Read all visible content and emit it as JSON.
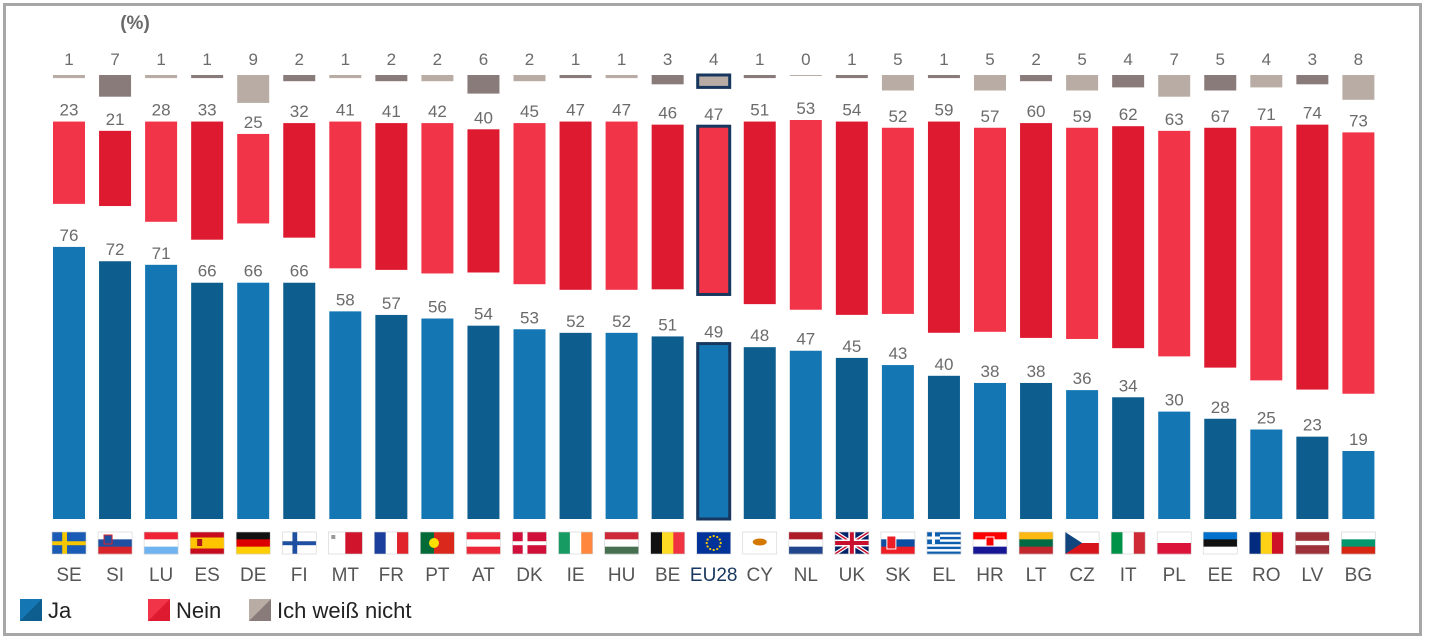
{
  "chart_data": {
    "type": "bar",
    "stacked": true,
    "unit_label": "(%)",
    "categories": [
      "SE",
      "SI",
      "LU",
      "ES",
      "DE",
      "FI",
      "MT",
      "FR",
      "PT",
      "AT",
      "DK",
      "IE",
      "HU",
      "BE",
      "EU28",
      "CY",
      "NL",
      "UK",
      "SK",
      "EL",
      "HR",
      "LT",
      "CZ",
      "IT",
      "PL",
      "EE",
      "RO",
      "LV",
      "BG"
    ],
    "highlight_category": "EU28",
    "series": [
      {
        "name": "Ja",
        "color": "#1070a8",
        "values": [
          76,
          72,
          71,
          66,
          66,
          66,
          58,
          57,
          56,
          54,
          53,
          52,
          52,
          51,
          49,
          48,
          47,
          45,
          43,
          40,
          38,
          38,
          36,
          34,
          30,
          28,
          25,
          23,
          19
        ]
      },
      {
        "name": "Nein",
        "color": "#e8253b",
        "values": [
          23,
          21,
          28,
          33,
          25,
          32,
          41,
          41,
          42,
          40,
          45,
          47,
          47,
          46,
          47,
          51,
          53,
          54,
          52,
          59,
          57,
          60,
          59,
          62,
          63,
          67,
          71,
          74,
          73
        ]
      },
      {
        "name": "Ich weiß nicht",
        "color": "#a09090",
        "values": [
          1,
          7,
          1,
          1,
          9,
          2,
          1,
          2,
          2,
          6,
          2,
          1,
          1,
          3,
          4,
          1,
          0,
          1,
          5,
          1,
          5,
          2,
          5,
          4,
          7,
          5,
          4,
          3,
          8
        ]
      }
    ],
    "ylim": [
      0,
      100
    ],
    "grid": false,
    "legend_position": "bottom-left",
    "flag_icons": [
      "sweden-flag-icon",
      "slovenia-flag-icon",
      "luxembourg-flag-icon",
      "spain-flag-icon",
      "germany-flag-icon",
      "finland-flag-icon",
      "malta-flag-icon",
      "france-flag-icon",
      "portugal-flag-icon",
      "austria-flag-icon",
      "denmark-flag-icon",
      "ireland-flag-icon",
      "hungary-flag-icon",
      "belgium-flag-icon",
      "eu-flag-icon",
      "cyprus-flag-icon",
      "netherlands-flag-icon",
      "uk-flag-icon",
      "slovakia-flag-icon",
      "greece-flag-icon",
      "croatia-flag-icon",
      "lithuania-flag-icon",
      "czech-flag-icon",
      "italy-flag-icon",
      "poland-flag-icon",
      "estonia-flag-icon",
      "romania-flag-icon",
      "latvia-flag-icon",
      "bulgaria-flag-icon"
    ]
  },
  "colors": {
    "ja_dark": "#0d5e8e",
    "ja_light": "#1477b4",
    "nein_dark": "#de1a30",
    "nein_light": "#f23448",
    "dk_dark": "#8a7b7b",
    "dk_light": "#b8aca4",
    "highlight_border": "#17375e"
  }
}
